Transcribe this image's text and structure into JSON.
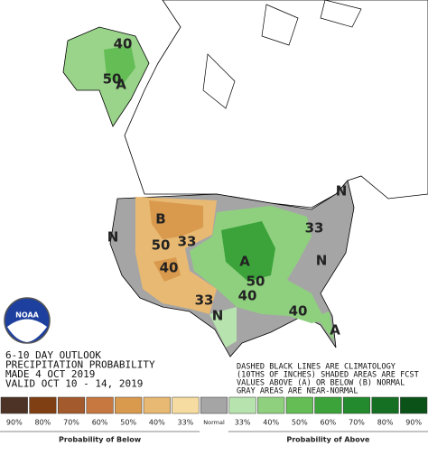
{
  "map": {
    "labels": [
      "40",
      "50",
      "A",
      "B",
      "N",
      "33",
      "50",
      "40",
      "33",
      "N",
      "A",
      "50",
      "40",
      "40",
      "33",
      "N",
      "N",
      "A"
    ],
    "outlook": [
      "6-10 DAY OUTLOOK",
      "PRECIPITATION PROBABILITY",
      "MADE   4 OCT 2019",
      "VALID  OCT 10 - 14, 2019"
    ],
    "notes": [
      "DASHED BLACK LINES ARE CLIMATOLOGY",
      "(10THS OF INCHES) SHADED AREAS ARE FCST",
      "VALUES ABOVE (A) OR BELOW (B) NORMAL",
      "GRAY AREAS ARE NEAR-NORMAL"
    ]
  },
  "legend": {
    "items": [
      {
        "label": "90%",
        "color": "#4d3326"
      },
      {
        "label": "80%",
        "color": "#7f3f12"
      },
      {
        "label": "70%",
        "color": "#a35a2d"
      },
      {
        "label": "60%",
        "color": "#c67840"
      },
      {
        "label": "50%",
        "color": "#d99a4e"
      },
      {
        "label": "40%",
        "color": "#e8b972"
      },
      {
        "label": "33%",
        "color": "#f6dca0"
      },
      {
        "label": "Normal",
        "color": "#a5a5a5"
      },
      {
        "label": "33%",
        "color": "#b7e3ae"
      },
      {
        "label": "40%",
        "color": "#8fd07f"
      },
      {
        "label": "50%",
        "color": "#64bd55"
      },
      {
        "label": "60%",
        "color": "#3ba33a"
      },
      {
        "label": "70%",
        "color": "#238b2d"
      },
      {
        "label": "80%",
        "color": "#167023"
      },
      {
        "label": "90%",
        "color": "#0b5218"
      }
    ],
    "below_title": "Probability of Below",
    "above_title": "Probability of Above"
  }
}
